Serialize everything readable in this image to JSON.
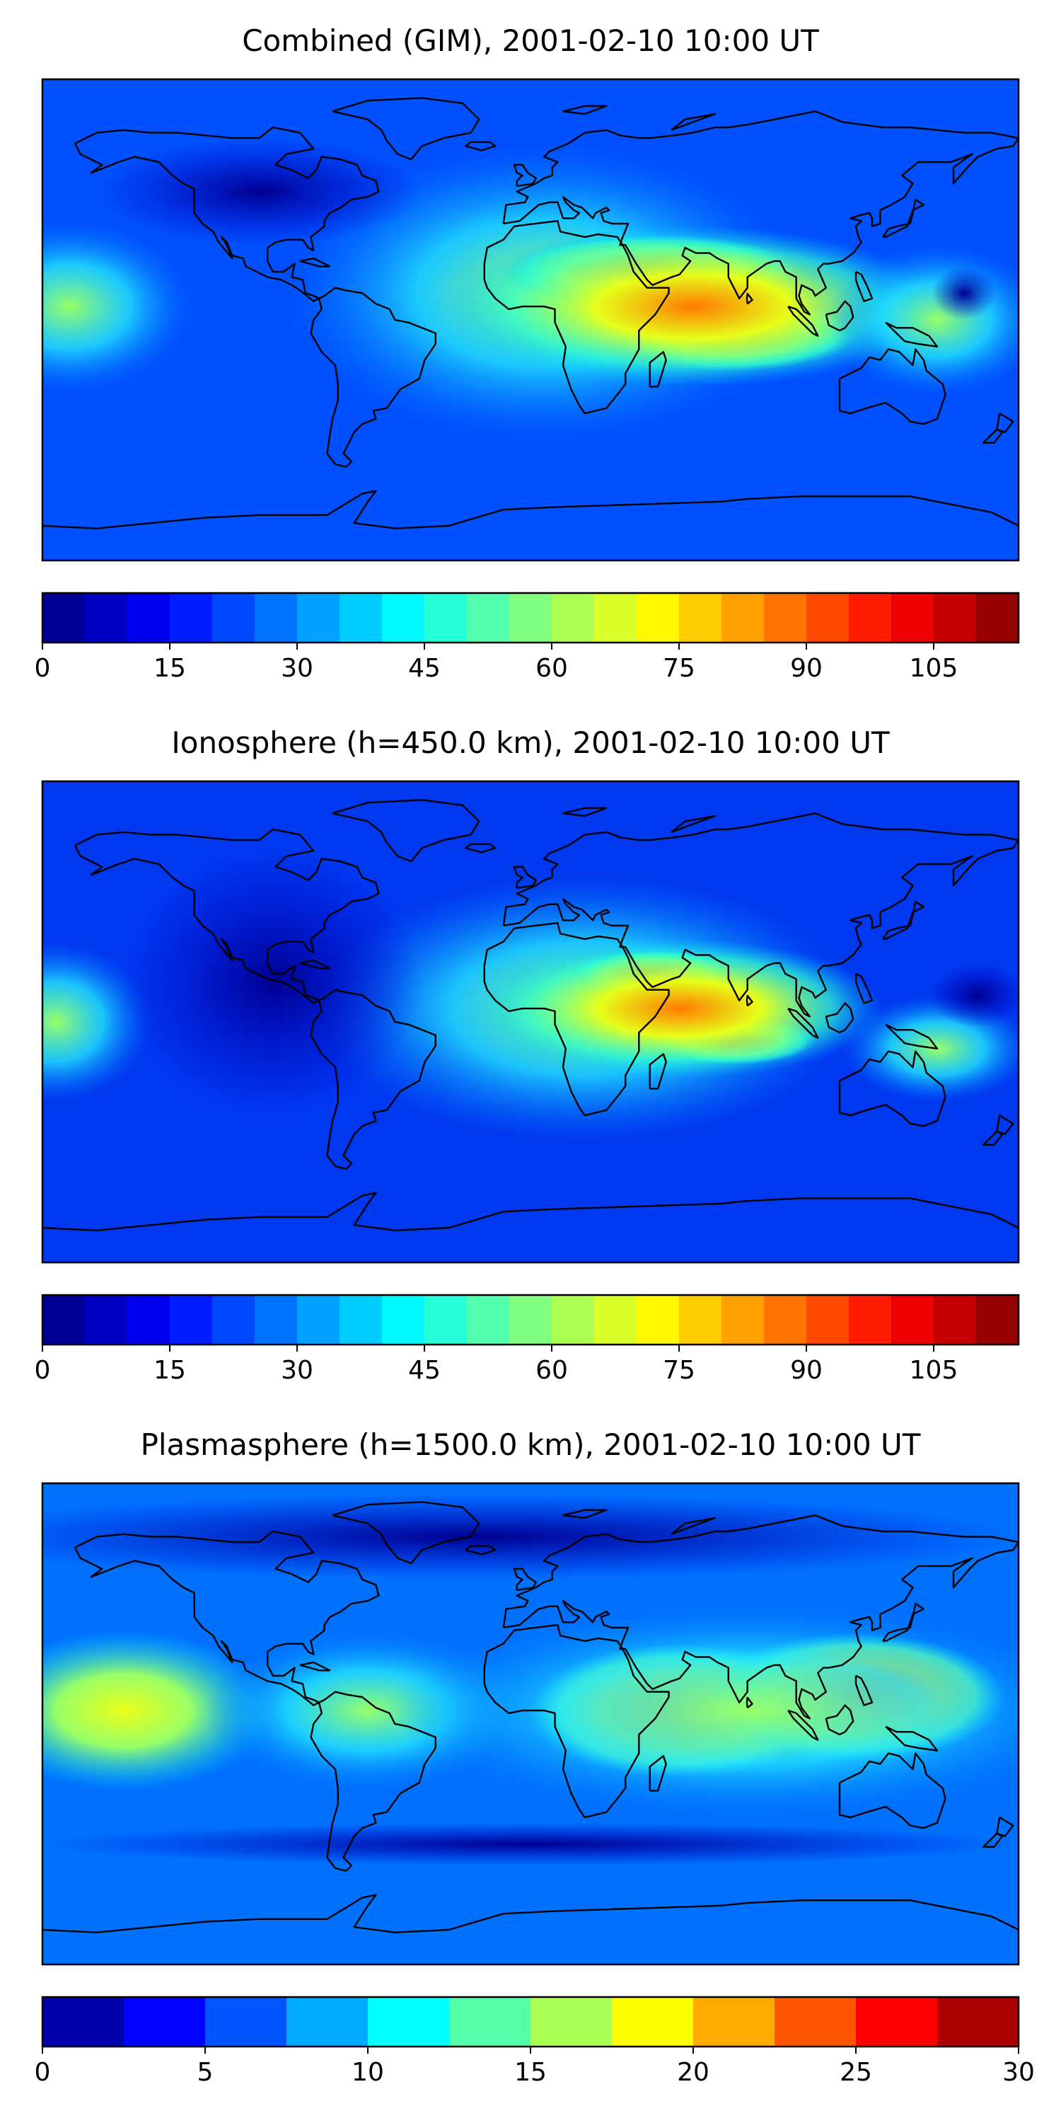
{
  "panels": [
    {
      "title": "Combined (GIM), 2001-02-10 10:00 UT",
      "vmax": 115,
      "levels": 23,
      "colorbar_ticks": [
        "0",
        "15",
        "30",
        "45",
        "60",
        "75",
        "90",
        "105"
      ],
      "tick_values": [
        0,
        15,
        30,
        45,
        60,
        75,
        90,
        105
      ],
      "colorbar_range": [
        0,
        115
      ]
    },
    {
      "title": "Ionosphere  (h=450.0 km), 2001-02-10 10:00 UT",
      "vmax": 115,
      "levels": 23,
      "colorbar_ticks": [
        "0",
        "15",
        "30",
        "45",
        "60",
        "75",
        "90",
        "105"
      ],
      "tick_values": [
        0,
        15,
        30,
        45,
        60,
        75,
        90,
        105
      ],
      "colorbar_range": [
        0,
        115
      ]
    },
    {
      "title": "Plasmasphere (h=1500.0 km), 2001-02-10 10:00 UT",
      "vmax": 30,
      "levels": 12,
      "colorbar_ticks": [
        "0",
        "5",
        "10",
        "15",
        "20",
        "25",
        "30"
      ],
      "tick_values": [
        0,
        5,
        10,
        15,
        20,
        25,
        30
      ],
      "colorbar_range": [
        0,
        30
      ]
    }
  ],
  "colormap": "jet",
  "coastline_color": "#000000"
}
